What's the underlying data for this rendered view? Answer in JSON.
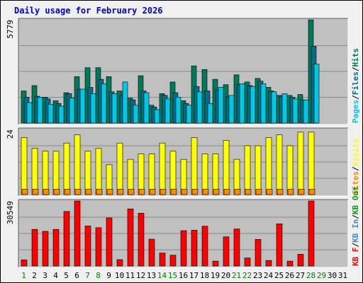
{
  "title": "Daily usage for February 2026",
  "colors": {
    "page_bg": "#f0f0f0",
    "plot_bg": "#c0c0c0",
    "gridline": "#8a8a8a",
    "title": "#0000c8",
    "pages": "#00c8e6",
    "files": "#006e8c",
    "hits": "#00785a",
    "visits": "#ffff00",
    "sites": "#ff8c00",
    "kbin": "#3c8cd2",
    "kbout": "#00a000",
    "kbf": "#ff0000",
    "day_weekday": "#000000",
    "day_weekend": "#008000"
  },
  "chart_data": {
    "type": "bar",
    "days": [
      "1",
      "2",
      "3",
      "4",
      "5",
      "6",
      "7",
      "8",
      "9",
      "10",
      "11",
      "12",
      "13",
      "14",
      "15",
      "16",
      "17",
      "18",
      "19",
      "20",
      "21",
      "22",
      "23",
      "24",
      "25",
      "26",
      "27",
      "28",
      "29",
      "30",
      "31"
    ],
    "weekend_days": [
      "1",
      "7",
      "8",
      "14",
      "15",
      "21",
      "22",
      "28",
      "29"
    ],
    "legend_separator": "/",
    "panels": [
      {
        "id": "hits",
        "ymax_label": "5779",
        "ylim": [
          0,
          5779
        ],
        "series": [
          {
            "name": "Hits",
            "color": "#00785a",
            "values": [
              1800,
              2100,
              1450,
              1250,
              1700,
              2600,
              3100,
              3100,
              2600,
              1800,
              1400,
              2650,
              1000,
              1650,
              2300,
              1250,
              3200,
              3000,
              2450,
              2150,
              2700,
              2300,
              2500,
              2000,
              1550,
              1550,
              1600,
              5779
            ]
          },
          {
            "name": "Files",
            "color": "#006e8c",
            "values": [
              1450,
              1500,
              1350,
              1100,
              1650,
              1900,
              2000,
              2450,
              1750,
              1550,
              1300,
              1800,
              900,
              1550,
              1700,
              1100,
              2050,
              1800,
              1850,
              1500,
              2150,
              2100,
              2350,
              1800,
              1500,
              1450,
              1300,
              4300
            ]
          },
          {
            "name": "Pages",
            "color": "#00c8e6",
            "values": [
              1150,
              1450,
              1050,
              950,
              1400,
              1900,
              1650,
              2200,
              1650,
              2300,
              1000,
              1700,
              750,
              1350,
              1450,
              1000,
              1750,
              1100,
              2000,
              1550,
              2200,
              2050,
              2200,
              1750,
              1650,
              1350,
              1300,
              3300
            ]
          }
        ]
      },
      {
        "id": "visits",
        "ymax_label": "24",
        "ylim": [
          0,
          24
        ],
        "series": [
          {
            "name": "Visits",
            "color": "#ffff00",
            "values": [
              21,
              17,
              16,
              16,
              19,
              22,
              16,
              17,
              11,
              19,
              13,
              15,
              15,
              19,
              16,
              13,
              21,
              15,
              15,
              20,
              13,
              18,
              18,
              21,
              22,
              18,
              23,
              23
            ]
          },
          {
            "name": "Sites",
            "color": "#ff8c00",
            "values": [
              2,
              2,
              2,
              2,
              2,
              2,
              2,
              2,
              2,
              2,
              2,
              2,
              2,
              2,
              2,
              2,
              2,
              2,
              2,
              2,
              2,
              2,
              2,
              2,
              2,
              2,
              2,
              2
            ]
          }
        ]
      },
      {
        "id": "kb",
        "ymax_label": "30549",
        "ylim": [
          0,
          30549
        ],
        "series": [
          {
            "name": "KB F",
            "color": "#ff0000",
            "values": [
              2900,
              17200,
              16300,
              17200,
              25600,
              30549,
              18800,
              18000,
              22600,
              3000,
              26800,
              24800,
              12600,
              6100,
              5100,
              16600,
              16800,
              18700,
              2300,
              13700,
              17400,
              3800,
              12500,
              2600,
              19800,
              2300,
              5500,
              30549
            ]
          },
          {
            "name": "KB In",
            "color": "#3c8cd2",
            "values": []
          },
          {
            "name": "KB Out",
            "color": "#00a000",
            "values": []
          }
        ]
      }
    ]
  }
}
